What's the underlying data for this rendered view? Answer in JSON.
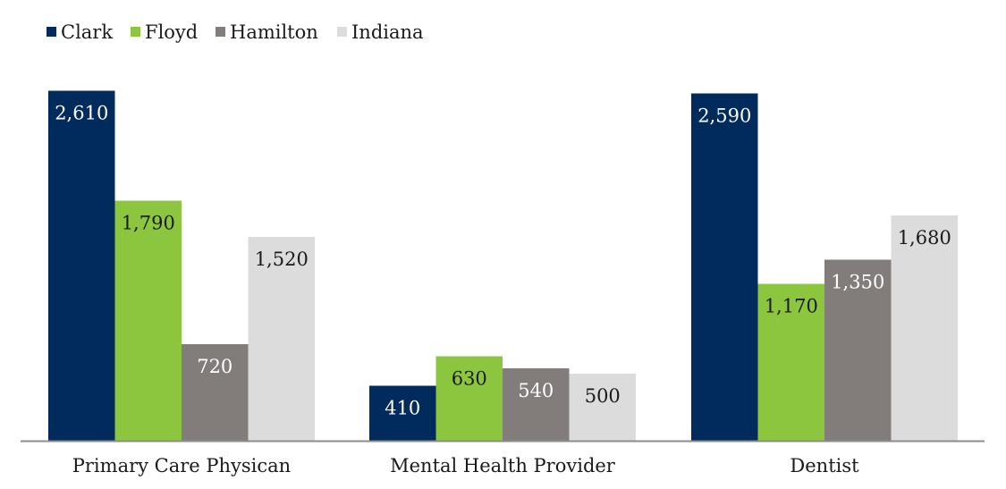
{
  "chart_data": {
    "type": "bar",
    "title": "",
    "xlabel": "",
    "ylabel": "",
    "ylim": [
      0,
      2700
    ],
    "grid": false,
    "legend_position": "top-left",
    "categories": [
      "Primary Care Physican",
      "Mental Health Provider",
      "Dentist"
    ],
    "series": [
      {
        "name": "Clark",
        "color": "#002b5c",
        "label_color": "#ffffff",
        "values": [
          2610,
          410,
          2590
        ],
        "labels": [
          "2,610",
          "410",
          "2,590"
        ]
      },
      {
        "name": "Floyd",
        "color": "#8cc63f",
        "label_color": "#1a1a1a",
        "values": [
          1790,
          630,
          1170
        ],
        "labels": [
          "1,790",
          "630",
          "1,170"
        ]
      },
      {
        "name": "Hamilton",
        "color": "#827d7b",
        "label_color": "#ffffff",
        "values": [
          720,
          540,
          1350
        ],
        "labels": [
          "720",
          "540",
          "1,350"
        ]
      },
      {
        "name": "Indiana",
        "color": "#dcdcdc",
        "label_color": "#1a1a1a",
        "values": [
          1520,
          500,
          1680
        ],
        "labels": [
          "1,520",
          "500",
          "1,680"
        ]
      }
    ],
    "axis_color": "#8c8c8c"
  }
}
